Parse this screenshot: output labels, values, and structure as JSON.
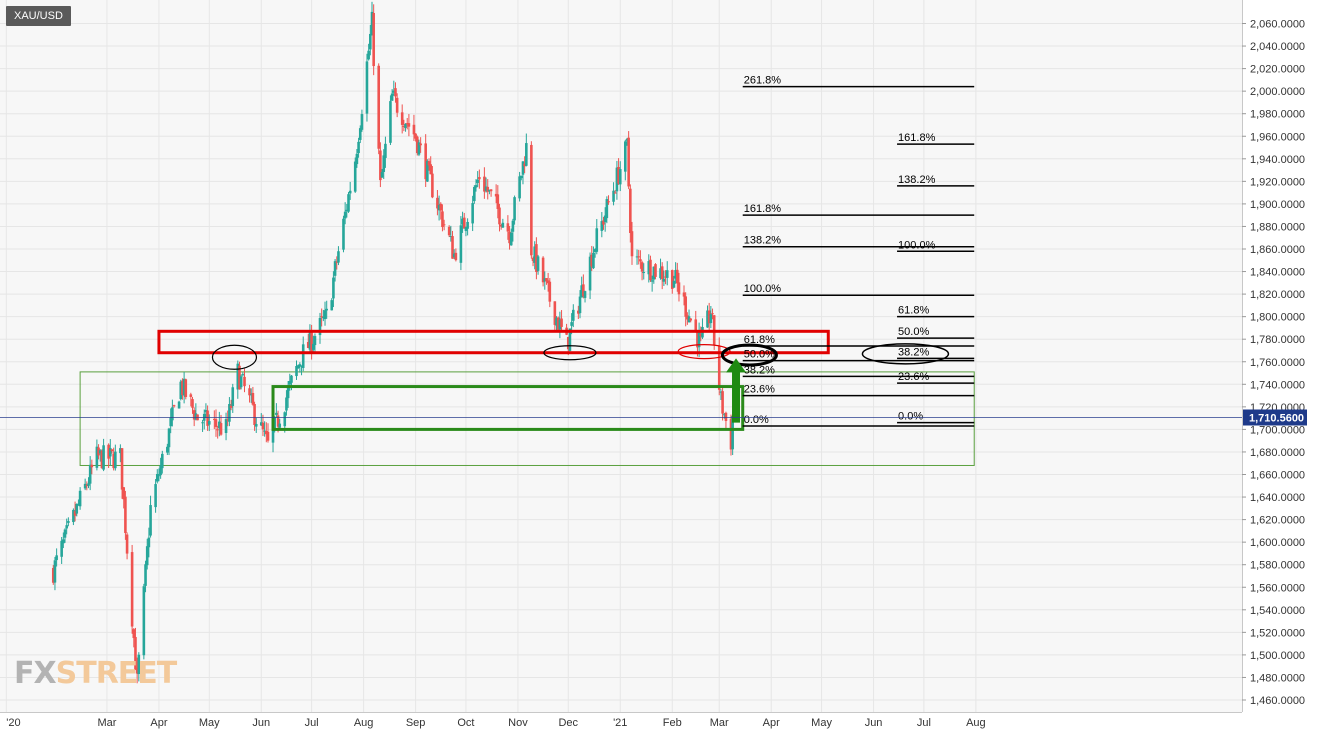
{
  "symbol": "XAU/USD",
  "watermark": {
    "fx": "FX",
    "street": "STREET"
  },
  "colors": {
    "up": "#26a69a",
    "down": "#ef5350",
    "resistance_box": "#e00000",
    "zone_box": "#2a8a1a",
    "wide_zone_box": "#5aa03e",
    "arrow": "#1f8a12",
    "fib_line": "#000000",
    "grid": "#e6e6e6",
    "last_price_bg": "#1e3a8a"
  },
  "chart_data": {
    "type": "candlestick",
    "instrument": "XAU/USD",
    "y_axis": {
      "ticks": [
        "2,060.0000",
        "2,040.0000",
        "2,020.0000",
        "2,000.0000",
        "1,980.0000",
        "1,960.0000",
        "1,940.0000",
        "1,920.0000",
        "1,900.0000",
        "1,880.0000",
        "1,860.0000",
        "1,840.0000",
        "1,820.0000",
        "1,800.0000",
        "1,780.0000",
        "1,760.0000",
        "1,740.0000",
        "1,720.0000",
        "1,700.0000",
        "1,680.0000",
        "1,660.0000",
        "1,640.0000",
        "1,620.0000",
        "1,600.0000",
        "1,580.0000",
        "1,560.0000",
        "1,540.0000",
        "1,520.0000",
        "1,500.0000",
        "1,480.0000",
        "1,460.0000"
      ],
      "tick_values": [
        2060,
        2040,
        2020,
        2000,
        1980,
        1960,
        1940,
        1920,
        1900,
        1880,
        1860,
        1840,
        1820,
        1800,
        1780,
        1760,
        1740,
        1720,
        1700,
        1680,
        1660,
        1640,
        1620,
        1600,
        1580,
        1560,
        1540,
        1520,
        1500,
        1480,
        1460
      ],
      "range": [
        1455,
        2072
      ]
    },
    "x_axis": {
      "labels": [
        {
          "text": "'20",
          "date": "2020-01-01"
        },
        {
          "text": "Mar",
          "date": "2020-03-01"
        },
        {
          "text": "Apr",
          "date": "2020-04-01"
        },
        {
          "text": "May",
          "date": "2020-05-01"
        },
        {
          "text": "Jun",
          "date": "2020-06-01"
        },
        {
          "text": "Jul",
          "date": "2020-07-01"
        },
        {
          "text": "Aug",
          "date": "2020-08-01"
        },
        {
          "text": "Sep",
          "date": "2020-09-01"
        },
        {
          "text": "Oct",
          "date": "2020-10-01"
        },
        {
          "text": "Nov",
          "date": "2020-11-01"
        },
        {
          "text": "Dec",
          "date": "2020-12-01"
        },
        {
          "text": "'21",
          "date": "2021-01-01"
        },
        {
          "text": "Feb",
          "date": "2021-02-01"
        },
        {
          "text": "Mar",
          "date": "2021-03-01"
        },
        {
          "text": "Apr",
          "date": "2021-04-01"
        },
        {
          "text": "May",
          "date": "2021-05-01"
        },
        {
          "text": "Jun",
          "date": "2021-06-01"
        },
        {
          "text": "Jul",
          "date": "2021-07-01"
        },
        {
          "text": "Aug",
          "date": "2021-08-01"
        }
      ]
    },
    "last_price": {
      "label": "1,710.5600",
      "value": 1710.56
    },
    "close_path": [
      {
        "date": "2020-01-29",
        "close": 1575
      },
      {
        "date": "2020-02-24",
        "close": 1675
      },
      {
        "date": "2020-03-09",
        "close": 1675
      },
      {
        "date": "2020-03-19",
        "close": 1475
      },
      {
        "date": "2020-03-27",
        "close": 1630
      },
      {
        "date": "2020-04-14",
        "close": 1740
      },
      {
        "date": "2020-04-24",
        "close": 1710
      },
      {
        "date": "2020-05-11",
        "close": 1700
      },
      {
        "date": "2020-05-18",
        "close": 1750
      },
      {
        "date": "2020-06-05",
        "close": 1685
      },
      {
        "date": "2020-06-25",
        "close": 1765
      },
      {
        "date": "2020-07-10",
        "close": 1800
      },
      {
        "date": "2020-07-27",
        "close": 1940
      },
      {
        "date": "2020-08-06",
        "close": 2060
      },
      {
        "date": "2020-08-11",
        "close": 1915
      },
      {
        "date": "2020-08-18",
        "close": 1995
      },
      {
        "date": "2020-09-01",
        "close": 1960
      },
      {
        "date": "2020-09-24",
        "close": 1855
      },
      {
        "date": "2020-10-09",
        "close": 1925
      },
      {
        "date": "2020-10-27",
        "close": 1875
      },
      {
        "date": "2020-11-06",
        "close": 1950
      },
      {
        "date": "2020-11-09",
        "close": 1860
      },
      {
        "date": "2020-11-30",
        "close": 1775
      },
      {
        "date": "2020-12-16",
        "close": 1860
      },
      {
        "date": "2021-01-05",
        "close": 1950
      },
      {
        "date": "2021-01-08",
        "close": 1850
      },
      {
        "date": "2021-02-02",
        "close": 1835
      },
      {
        "date": "2021-02-18",
        "close": 1775
      },
      {
        "date": "2021-02-24",
        "close": 1805
      },
      {
        "date": "2021-03-02",
        "close": 1725
      },
      {
        "date": "2021-03-08",
        "close": 1690
      },
      {
        "date": "2021-03-09",
        "close": 1712
      }
    ],
    "fib_sets": [
      {
        "start": "2021-03-15",
        "end": "2021-07-31",
        "levels": [
          {
            "label": "261.8%",
            "price": 2004
          },
          {
            "label": "161.8%",
            "price": 1890
          },
          {
            "label": "138.2%",
            "price": 1862
          },
          {
            "label": "100.0%",
            "price": 1819
          },
          {
            "label": "61.8%",
            "price": 1774
          },
          {
            "label": "50.0%",
            "price": 1761
          },
          {
            "label": "38.2%",
            "price": 1747
          },
          {
            "label": "23.6%",
            "price": 1730
          },
          {
            "label": "0.0%",
            "price": 1703
          }
        ]
      },
      {
        "start": "2021-06-15",
        "end": "2021-07-31",
        "levels": [
          {
            "label": "161.8%",
            "price": 1953
          },
          {
            "label": "138.2%",
            "price": 1916
          },
          {
            "label": "100.0%",
            "price": 1858
          },
          {
            "label": "61.8%",
            "price": 1800
          },
          {
            "label": "50.0%",
            "price": 1781
          },
          {
            "label": "38.2%",
            "price": 1763
          },
          {
            "label": "23.6%",
            "price": 1741
          },
          {
            "label": "0.0%",
            "price": 1706
          }
        ]
      }
    ],
    "annotations": {
      "resistance_zone": {
        "start": "2020-04-01",
        "end": "2021-05-05",
        "top": 1787,
        "bottom": 1768
      },
      "support_zone": {
        "start": "2020-06-08",
        "end": "2021-03-15",
        "top": 1738,
        "bottom": 1700
      },
      "wide_zone": {
        "start": "2020-02-14",
        "end": "2021-07-31",
        "top": 1751,
        "bottom": 1668
      },
      "arrow": {
        "date": "2021-03-11",
        "from": 1706,
        "to": 1763
      },
      "ellipses": [
        {
          "date": "2020-05-16",
          "price": 1764,
          "color": "#000000"
        },
        {
          "date": "2020-12-02",
          "price": 1768,
          "color": "#000000"
        },
        {
          "date": "2021-02-20",
          "price": 1769,
          "color": "#e00000"
        },
        {
          "date": "2021-03-19",
          "price": 1766,
          "color": "#000000"
        },
        {
          "date": "2021-06-20",
          "price": 1767,
          "color": "#000000"
        }
      ]
    }
  }
}
